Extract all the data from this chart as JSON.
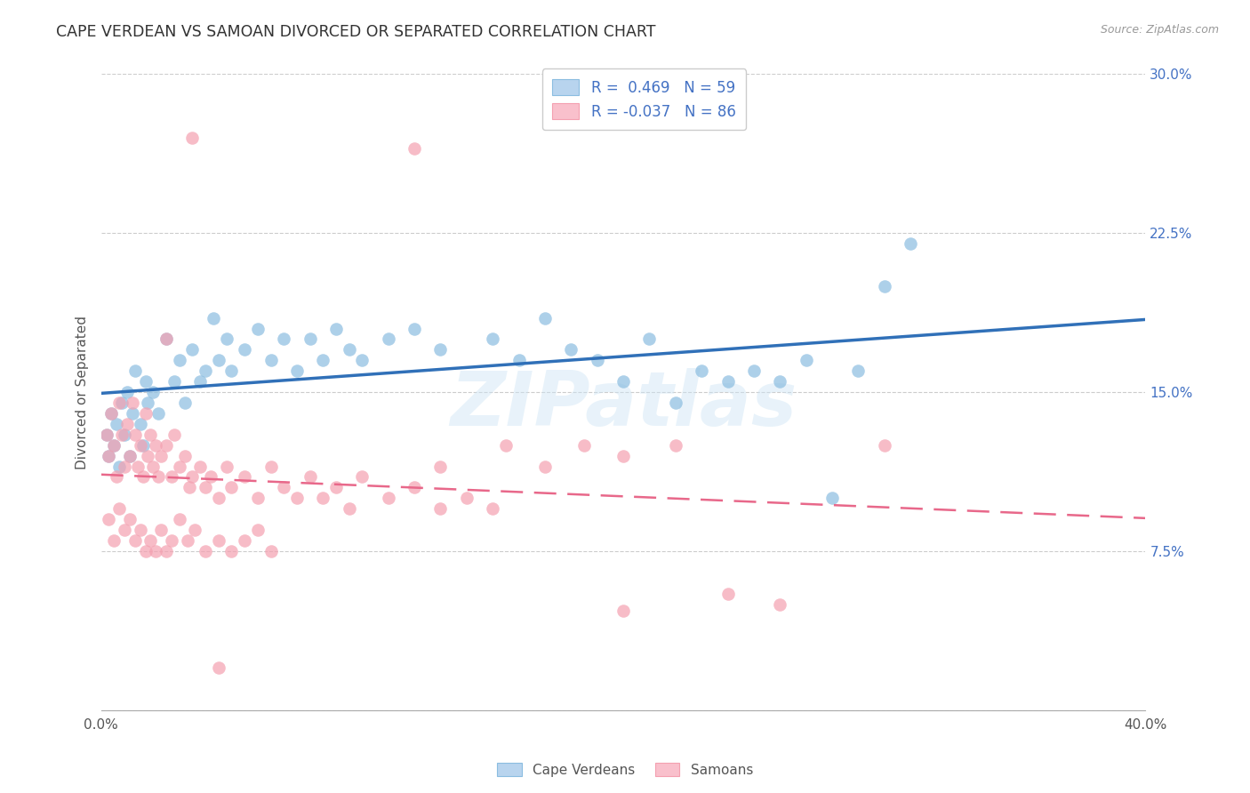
{
  "title": "CAPE VERDEAN VS SAMOAN DIVORCED OR SEPARATED CORRELATION CHART",
  "source": "Source: ZipAtlas.com",
  "ylabel": "Divorced or Separated",
  "xlim": [
    0.0,
    0.4
  ],
  "ylim": [
    0.0,
    0.3
  ],
  "xticks": [
    0.0,
    0.1,
    0.2,
    0.3,
    0.4
  ],
  "yticks": [
    0.0,
    0.075,
    0.15,
    0.225,
    0.3
  ],
  "xticklabels": [
    "0.0%",
    "",
    "",
    "",
    "40.0%"
  ],
  "yticklabels_right": [
    "",
    "7.5%",
    "15.0%",
    "22.5%",
    "30.0%"
  ],
  "legend_labels": [
    "Cape Verdeans",
    "Samoans"
  ],
  "r_blue": 0.469,
  "n_blue": 59,
  "r_pink": -0.037,
  "n_pink": 86,
  "blue_color": "#8bbde0",
  "pink_color": "#f4a0b0",
  "blue_line_color": "#3070b8",
  "pink_line_color": "#e8688a",
  "watermark": "ZIPatlas",
  "blue_scatter_x": [
    0.002,
    0.003,
    0.004,
    0.005,
    0.006,
    0.007,
    0.008,
    0.009,
    0.01,
    0.011,
    0.012,
    0.013,
    0.015,
    0.016,
    0.017,
    0.018,
    0.02,
    0.022,
    0.025,
    0.028,
    0.03,
    0.032,
    0.035,
    0.038,
    0.04,
    0.043,
    0.045,
    0.048,
    0.05,
    0.055,
    0.06,
    0.065,
    0.07,
    0.075,
    0.08,
    0.085,
    0.09,
    0.095,
    0.1,
    0.11,
    0.12,
    0.13,
    0.15,
    0.16,
    0.17,
    0.18,
    0.19,
    0.2,
    0.21,
    0.22,
    0.23,
    0.24,
    0.25,
    0.26,
    0.27,
    0.28,
    0.29,
    0.3,
    0.31
  ],
  "blue_scatter_y": [
    0.13,
    0.12,
    0.14,
    0.125,
    0.135,
    0.115,
    0.145,
    0.13,
    0.15,
    0.12,
    0.14,
    0.16,
    0.135,
    0.125,
    0.155,
    0.145,
    0.15,
    0.14,
    0.175,
    0.155,
    0.165,
    0.145,
    0.17,
    0.155,
    0.16,
    0.185,
    0.165,
    0.175,
    0.16,
    0.17,
    0.18,
    0.165,
    0.175,
    0.16,
    0.175,
    0.165,
    0.18,
    0.17,
    0.165,
    0.175,
    0.18,
    0.17,
    0.175,
    0.165,
    0.185,
    0.17,
    0.165,
    0.155,
    0.175,
    0.145,
    0.16,
    0.155,
    0.16,
    0.155,
    0.165,
    0.1,
    0.16,
    0.2,
    0.22
  ],
  "pink_scatter_x": [
    0.002,
    0.003,
    0.004,
    0.005,
    0.006,
    0.007,
    0.008,
    0.009,
    0.01,
    0.011,
    0.012,
    0.013,
    0.014,
    0.015,
    0.016,
    0.017,
    0.018,
    0.019,
    0.02,
    0.021,
    0.022,
    0.023,
    0.025,
    0.027,
    0.028,
    0.03,
    0.032,
    0.034,
    0.035,
    0.038,
    0.04,
    0.042,
    0.045,
    0.048,
    0.05,
    0.055,
    0.06,
    0.065,
    0.07,
    0.075,
    0.08,
    0.085,
    0.09,
    0.095,
    0.1,
    0.11,
    0.12,
    0.13,
    0.14,
    0.15,
    0.003,
    0.005,
    0.007,
    0.009,
    0.011,
    0.013,
    0.015,
    0.017,
    0.019,
    0.021,
    0.023,
    0.025,
    0.027,
    0.03,
    0.033,
    0.036,
    0.04,
    0.045,
    0.05,
    0.055,
    0.06,
    0.065,
    0.13,
    0.155,
    0.17,
    0.185,
    0.2,
    0.22,
    0.24,
    0.26,
    0.12,
    0.025,
    0.035,
    0.045,
    0.3,
    0.2
  ],
  "pink_scatter_y": [
    0.13,
    0.12,
    0.14,
    0.125,
    0.11,
    0.145,
    0.13,
    0.115,
    0.135,
    0.12,
    0.145,
    0.13,
    0.115,
    0.125,
    0.11,
    0.14,
    0.12,
    0.13,
    0.115,
    0.125,
    0.11,
    0.12,
    0.125,
    0.11,
    0.13,
    0.115,
    0.12,
    0.105,
    0.11,
    0.115,
    0.105,
    0.11,
    0.1,
    0.115,
    0.105,
    0.11,
    0.1,
    0.115,
    0.105,
    0.1,
    0.11,
    0.1,
    0.105,
    0.095,
    0.11,
    0.1,
    0.105,
    0.095,
    0.1,
    0.095,
    0.09,
    0.08,
    0.095,
    0.085,
    0.09,
    0.08,
    0.085,
    0.075,
    0.08,
    0.075,
    0.085,
    0.075,
    0.08,
    0.09,
    0.08,
    0.085,
    0.075,
    0.08,
    0.075,
    0.08,
    0.085,
    0.075,
    0.115,
    0.125,
    0.115,
    0.125,
    0.12,
    0.125,
    0.055,
    0.05,
    0.265,
    0.175,
    0.27,
    0.02,
    0.125,
    0.047
  ]
}
